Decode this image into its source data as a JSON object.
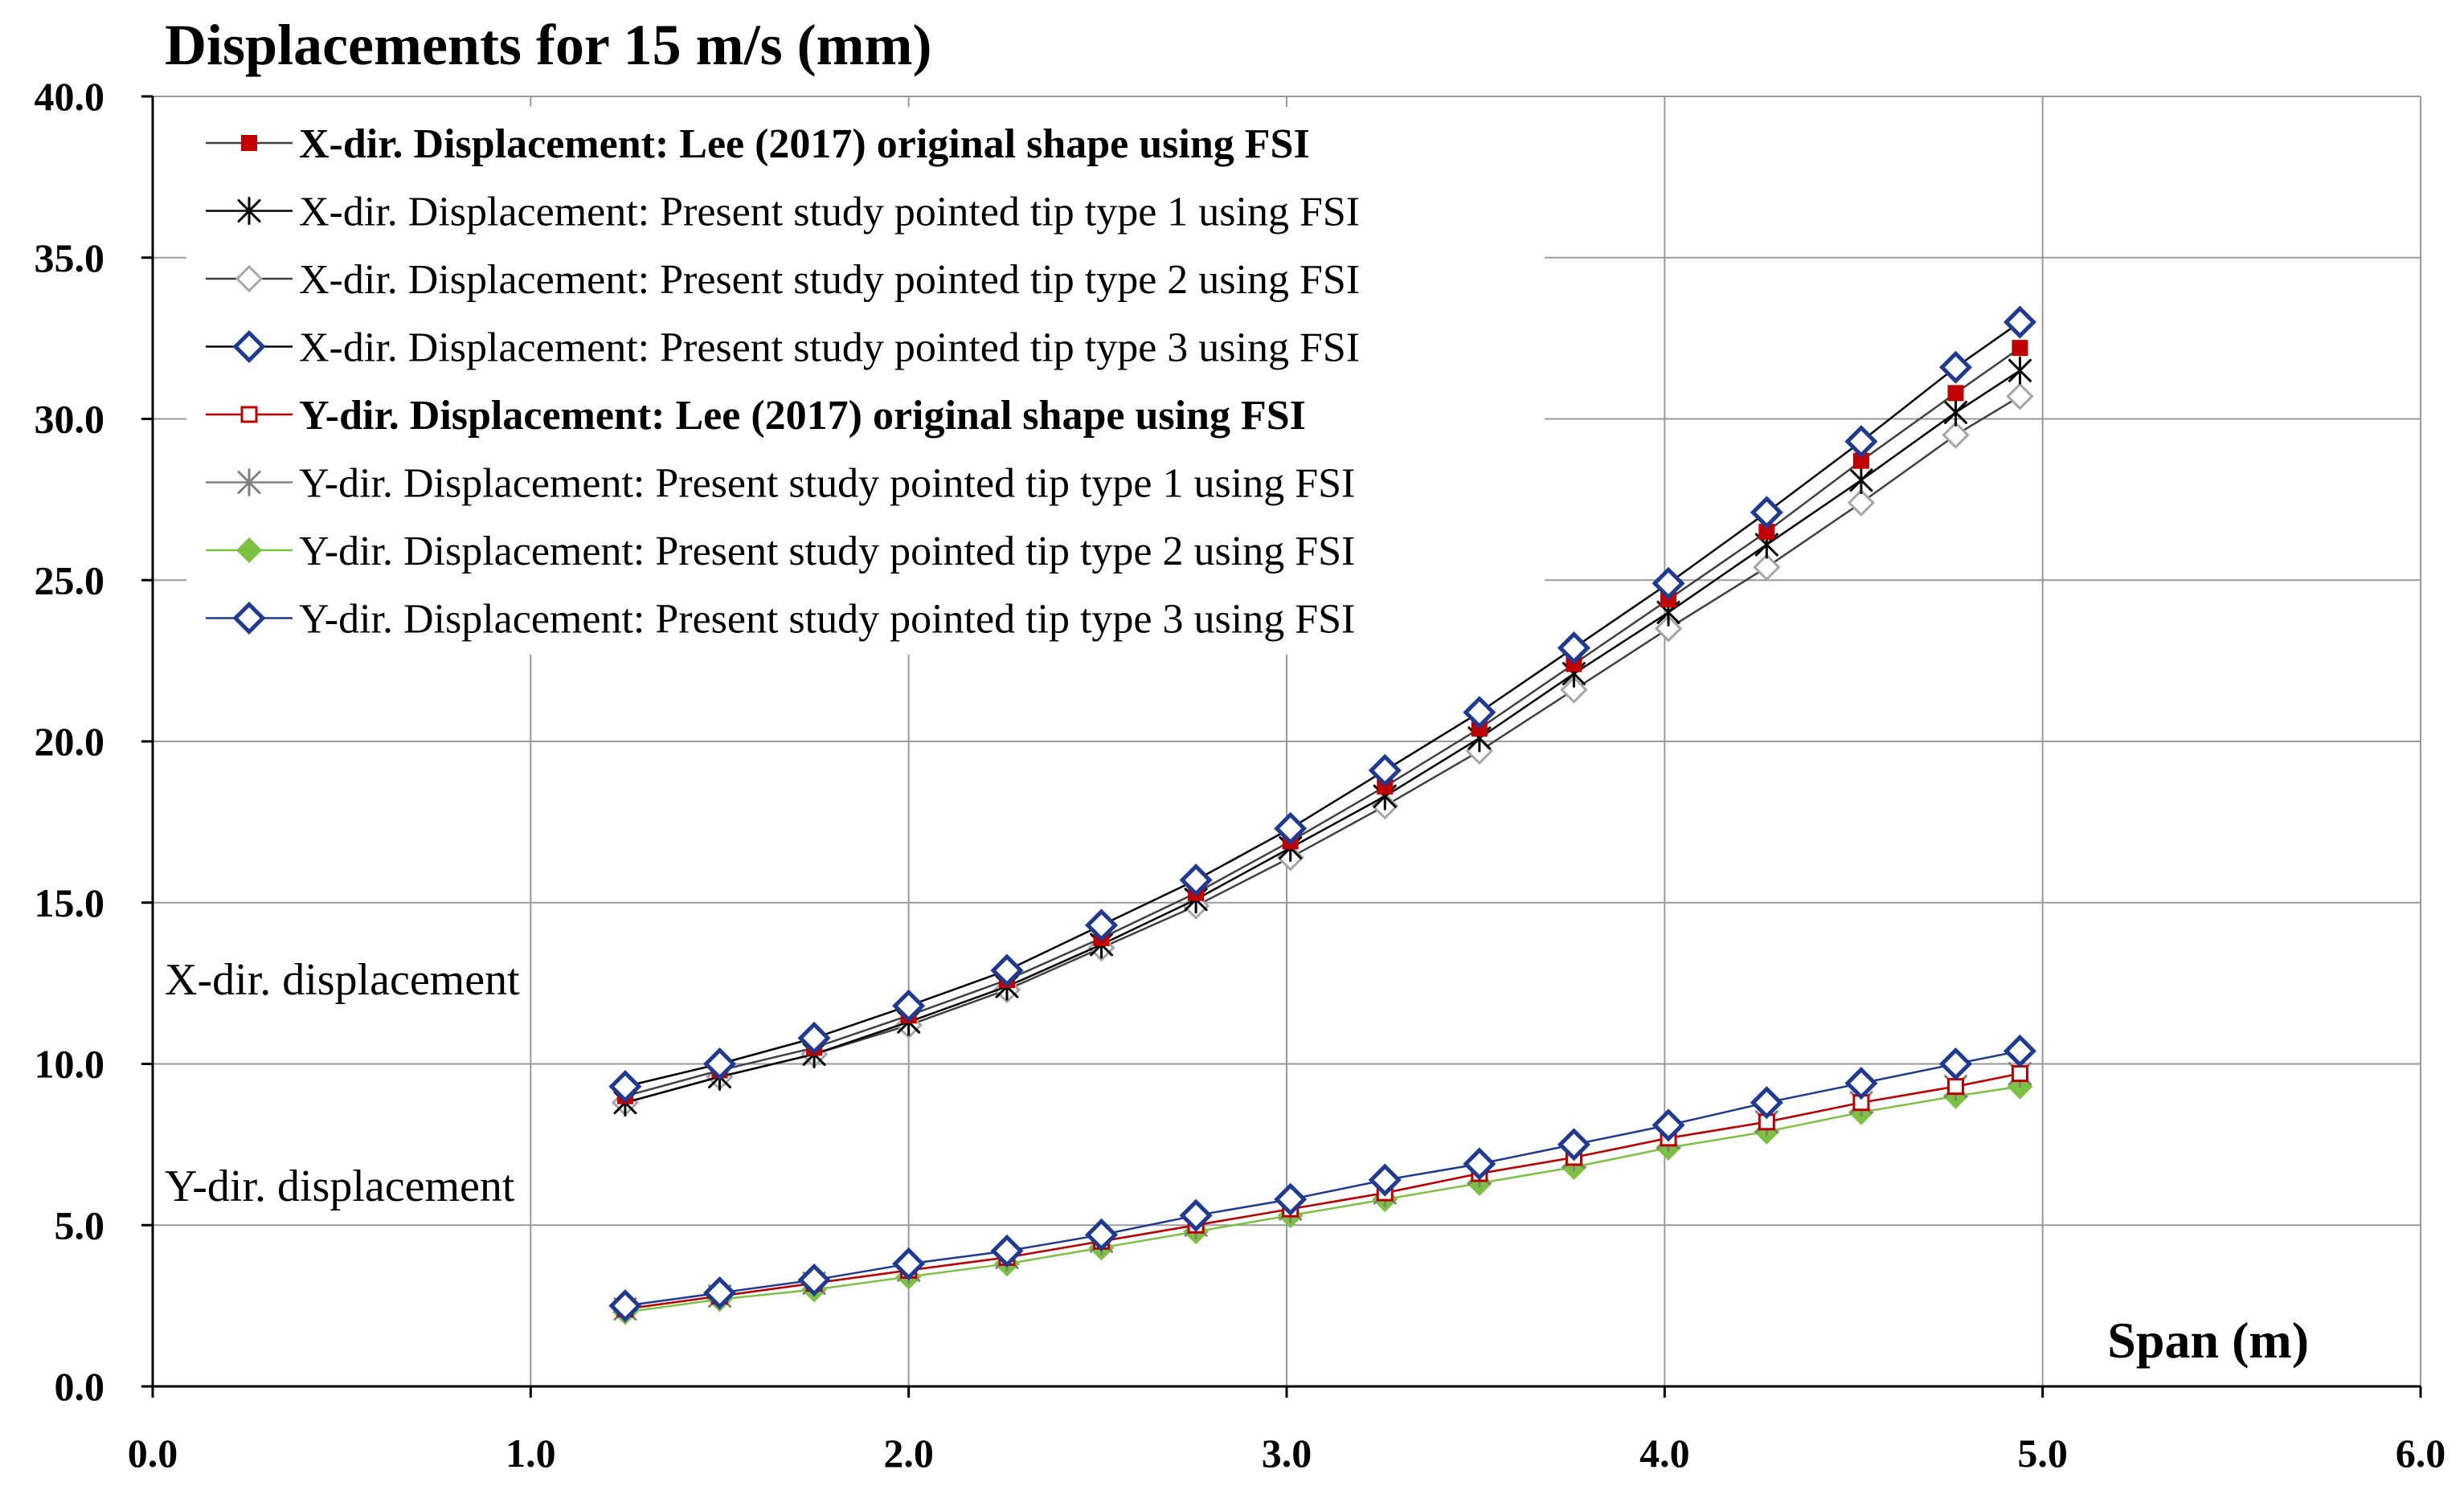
{
  "chart_data": {
    "type": "line",
    "title": "Displacements for 15 m/s (mm)",
    "xlabel": "Span (m)",
    "ylabel": "",
    "xlim": [
      0.0,
      6.0
    ],
    "ylim": [
      0.0,
      40.0
    ],
    "x_ticks": [
      "0.0",
      "1.0",
      "2.0",
      "3.0",
      "4.0",
      "5.0",
      "6.0"
    ],
    "y_ticks": [
      "0.0",
      "5.0",
      "10.0",
      "15.0",
      "20.0",
      "25.0",
      "30.0",
      "35.0",
      "40.0"
    ],
    "grid": true,
    "legend_position": "top-left",
    "annotations": [
      "X-dir. displacement",
      "Y-dir. displacement"
    ],
    "x": [
      1.25,
      1.5,
      1.75,
      2.0,
      2.26,
      2.51,
      2.76,
      3.01,
      3.26,
      3.51,
      3.76,
      4.01,
      4.27,
      4.52,
      4.77,
      4.94
    ],
    "series": [
      {
        "name": "X-dir. Displacement: Lee (2017) original shape using FSI",
        "bold": true,
        "marker": "square-filled",
        "color": "#c00000",
        "line_color": "#404040",
        "values": [
          9.0,
          9.8,
          10.5,
          11.5,
          12.6,
          13.9,
          15.3,
          16.9,
          18.6,
          20.4,
          22.4,
          24.4,
          26.5,
          28.7,
          30.8,
          32.2
        ]
      },
      {
        "name": "X-dir. Displacement: Present study pointed tip type 1 using FSI",
        "bold": false,
        "marker": "asterisk",
        "color": "#000000",
        "line_color": "#000000",
        "values": [
          8.8,
          9.6,
          10.3,
          11.3,
          12.4,
          13.7,
          15.1,
          16.7,
          18.3,
          20.1,
          22.1,
          24.0,
          26.1,
          28.1,
          30.2,
          31.5
        ]
      },
      {
        "name": "X-dir. Displacement: Present study pointed tip type 2 using FSI",
        "bold": false,
        "marker": "diamond-open",
        "color": "#a6a6a6",
        "line_color": "#404040",
        "values": [
          8.8,
          9.6,
          10.3,
          11.2,
          12.3,
          13.6,
          14.9,
          16.4,
          18.0,
          19.7,
          21.6,
          23.5,
          25.4,
          27.4,
          29.5,
          30.7
        ]
      },
      {
        "name": "X-dir. Displacement: Present study pointed tip type 3 using FSI",
        "bold": false,
        "marker": "diamond-open-thick",
        "color": "#1f3a93",
        "line_color": "#000000",
        "values": [
          9.3,
          10.0,
          10.8,
          11.8,
          12.9,
          14.3,
          15.7,
          17.3,
          19.1,
          20.9,
          22.9,
          24.9,
          27.1,
          29.3,
          31.6,
          33.0
        ]
      },
      {
        "name": "Y-dir. Displacement: Lee (2017) original shape using FSI",
        "bold": true,
        "marker": "square-open",
        "color": "#c00000",
        "line_color": "#c00000",
        "values": [
          2.4,
          2.8,
          3.2,
          3.6,
          4.0,
          4.5,
          5.0,
          5.5,
          6.0,
          6.6,
          7.1,
          7.7,
          8.2,
          8.8,
          9.3,
          9.7
        ]
      },
      {
        "name": "Y-dir. Displacement: Present study pointed tip type 1 using FSI",
        "bold": false,
        "marker": "asterisk",
        "color": "#808080",
        "line_color": "#808080",
        "values": [
          2.4,
          2.8,
          3.2,
          3.6,
          4.0,
          4.5,
          5.0,
          5.5,
          6.0,
          6.6,
          7.1,
          7.7,
          8.2,
          8.8,
          9.3,
          9.7
        ]
      },
      {
        "name": "Y-dir. Displacement: Present study pointed tip type 2 using FSI",
        "bold": false,
        "marker": "diamond-filled",
        "color": "#7cc242",
        "line_color": "#7cc242",
        "values": [
          2.3,
          2.7,
          3.0,
          3.4,
          3.8,
          4.3,
          4.8,
          5.3,
          5.8,
          6.3,
          6.8,
          7.4,
          7.9,
          8.5,
          9.0,
          9.3
        ]
      },
      {
        "name": "Y-dir. Displacement: Present study pointed tip type 3 using FSI",
        "bold": false,
        "marker": "diamond-open-thick",
        "color": "#1f3a93",
        "line_color": "#1f3a93",
        "values": [
          2.5,
          2.9,
          3.3,
          3.8,
          4.2,
          4.7,
          5.3,
          5.8,
          6.4,
          6.9,
          7.5,
          8.1,
          8.8,
          9.4,
          10.0,
          10.4
        ]
      }
    ]
  }
}
